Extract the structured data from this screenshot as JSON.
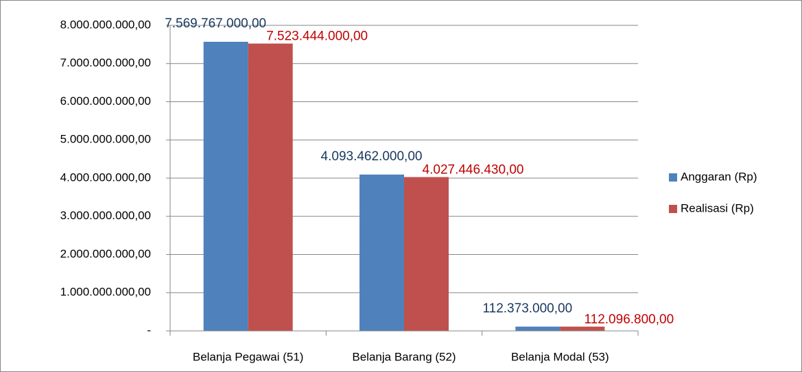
{
  "chart_data": {
    "type": "bar",
    "categories": [
      "Belanja Pegawai (51)",
      "Belanja Barang (52)",
      "Belanja Modal (53)"
    ],
    "series": [
      {
        "name": "Anggaran (Rp)",
        "color": "#4f81bd",
        "label_color": "#17375e",
        "values": [
          7569767000,
          4093462000,
          112373000
        ],
        "value_labels": [
          "7.569.767.000,00",
          "4.093.462.000,00",
          "112.373.000,00"
        ]
      },
      {
        "name": "Realisasi (Rp)",
        "color": "#c0504d",
        "label_color": "#c00000",
        "values": [
          7523444000,
          4027446430,
          112096800
        ],
        "value_labels": [
          "7.523.444.000,00",
          "4.027.446.430,00",
          "112.096.800,00"
        ]
      }
    ],
    "ylim": [
      0,
      8000000000
    ],
    "yticks": [
      {
        "value": 0,
        "label": "-"
      },
      {
        "value": 1000000000,
        "label": "1.000.000.000,00"
      },
      {
        "value": 2000000000,
        "label": "2.000.000.000,00"
      },
      {
        "value": 3000000000,
        "label": "3.000.000.000,00"
      },
      {
        "value": 4000000000,
        "label": "4.000.000.000,00"
      },
      {
        "value": 5000000000,
        "label": "5.000.000.000,00"
      },
      {
        "value": 6000000000,
        "label": "6.000.000.000,00"
      },
      {
        "value": 7000000000,
        "label": "7.000.000.000,00"
      },
      {
        "value": 8000000000,
        "label": "8.000.000.000,00"
      }
    ],
    "grid": true,
    "legend": "right"
  }
}
